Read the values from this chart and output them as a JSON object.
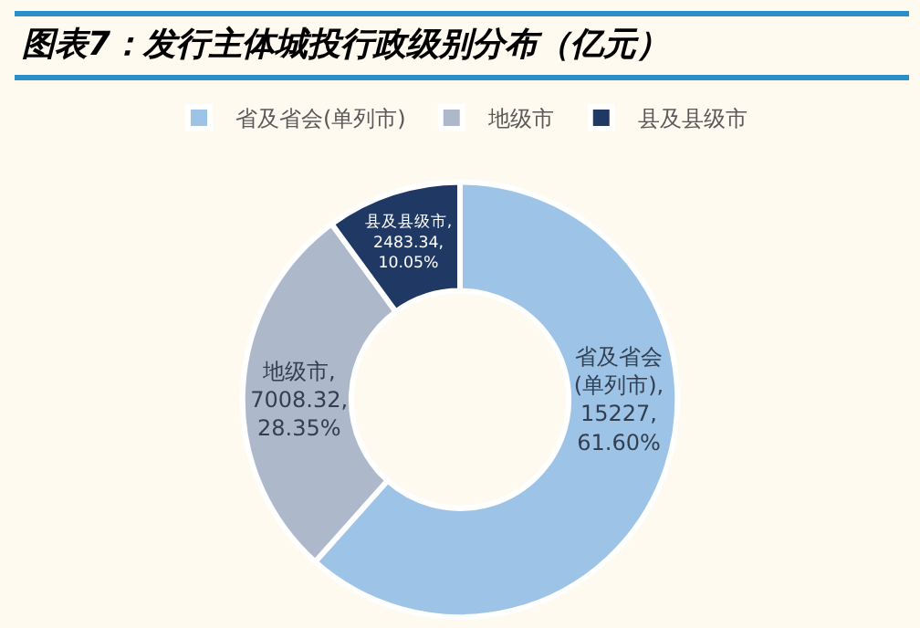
{
  "chart_data": {
    "type": "donut",
    "title": "图表7：发行主体城投行政级别分布（亿元）",
    "categories": [
      "省及省会(单列市)",
      "地级市",
      "县及县级市"
    ],
    "values": [
      15227,
      7008.32,
      2483.34
    ],
    "colors": [
      "#9dc3e6",
      "#adb9ca",
      "#1f3864"
    ],
    "value_labels": [
      "省及省会(单列市), 15227, 61.60%",
      "地级市, 7008.32, 28.35%",
      "县及县级市, 2483.34, 10.05%"
    ],
    "legend": "top"
  }
}
